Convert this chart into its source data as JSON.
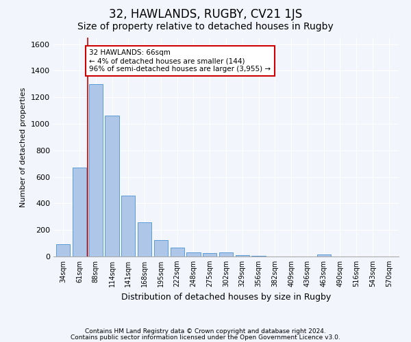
{
  "title1": "32, HAWLANDS, RUGBY, CV21 1JS",
  "title2": "Size of property relative to detached houses in Rugby",
  "xlabel": "Distribution of detached houses by size in Rugby",
  "ylabel": "Number of detached properties",
  "categories": [
    "34sqm",
    "61sqm",
    "88sqm",
    "114sqm",
    "141sqm",
    "168sqm",
    "195sqm",
    "222sqm",
    "248sqm",
    "275sqm",
    "302sqm",
    "329sqm",
    "356sqm",
    "382sqm",
    "409sqm",
    "436sqm",
    "463sqm",
    "490sqm",
    "516sqm",
    "543sqm",
    "570sqm"
  ],
  "values": [
    95,
    670,
    1300,
    1060,
    460,
    260,
    125,
    65,
    30,
    28,
    30,
    10,
    5,
    0,
    0,
    0,
    15,
    0,
    0,
    0,
    0
  ],
  "bar_color": "#aec6e8",
  "bar_edge_color": "#5b9bd5",
  "marker_line_color": "#cc0000",
  "annotation_line1": "32 HAWLANDS: 66sqm",
  "annotation_line2": "← 4% of detached houses are smaller (144)",
  "annotation_line3": "96% of semi-detached houses are larger (3,955) →",
  "annotation_box_edge_color": "#cc0000",
  "ylim": [
    0,
    1650
  ],
  "yticks": [
    0,
    200,
    400,
    600,
    800,
    1000,
    1200,
    1400,
    1600
  ],
  "footer1": "Contains HM Land Registry data © Crown copyright and database right 2024.",
  "footer2": "Contains public sector information licensed under the Open Government Licence v3.0.",
  "bg_color": "#f2f5fb",
  "plot_bg_color": "#f2f5fb",
  "grid_color": "#ffffff",
  "title1_fontsize": 12,
  "title2_fontsize": 10
}
